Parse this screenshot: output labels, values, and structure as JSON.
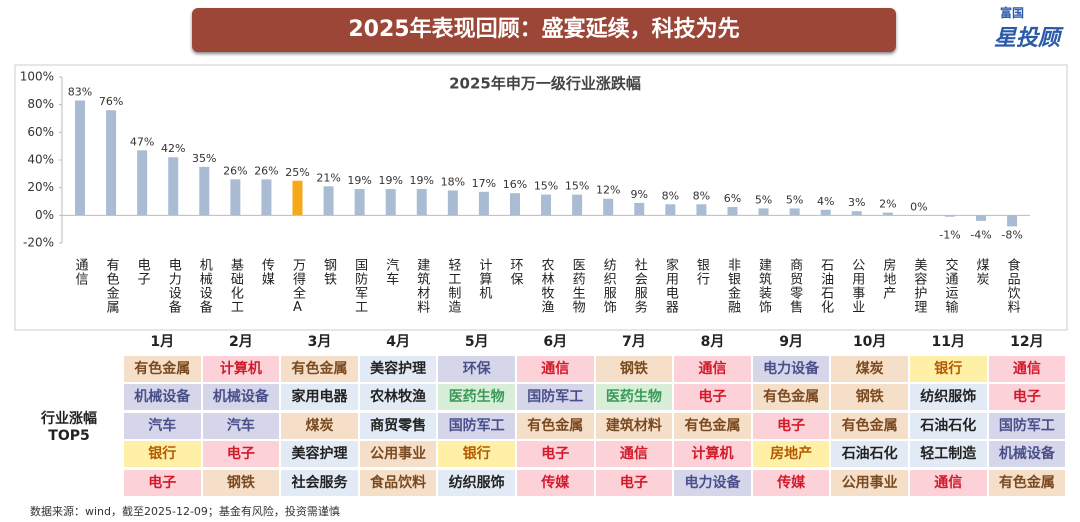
{
  "header": {
    "title": "2025年表现回顾：盛宴延续，科技为先",
    "logo_top": "富国",
    "logo_main": "星投顾"
  },
  "chart_data": {
    "type": "bar",
    "title": "2025年申万一级行业涨跌幅",
    "categories": [
      "通信",
      "有色金属",
      "电子",
      "电力设备",
      "机械设备",
      "基础化工",
      "传媒",
      "万得全A",
      "钢铁",
      "国防军工",
      "汽车",
      "建筑材料",
      "轻工制造",
      "计算机",
      "环保",
      "农林牧渔",
      "医药生物",
      "纺织服饰",
      "社会服务",
      "家用电器",
      "银行",
      "非银金融",
      "建筑装饰",
      "商贸零售",
      "石油石化",
      "公用事业",
      "房地产",
      "美容护理",
      "交通运输",
      "煤炭",
      "食品饮料"
    ],
    "values": [
      83,
      76,
      47,
      42,
      35,
      26,
      26,
      25,
      21,
      19,
      19,
      19,
      18,
      17,
      16,
      15,
      15,
      12,
      9,
      8,
      8,
      6,
      5,
      5,
      4,
      3,
      2,
      0,
      -1,
      -4,
      -8
    ],
    "value_labels": [
      "83%",
      "76%",
      "47%",
      "42%",
      "35%",
      "26%",
      "26%",
      "25%",
      "21%",
      "19%",
      "19%",
      "19%",
      "18%",
      "17%",
      "16%",
      "15%",
      "15%",
      "12%",
      "9%",
      "8%",
      "8%",
      "6%",
      "5%",
      "5%",
      "4%",
      "3%",
      "2%",
      "0%",
      "-1%",
      "-4%",
      "-8%"
    ],
    "colors": [
      "#a9bcd4",
      "#a9bcd4",
      "#a9bcd4",
      "#a9bcd4",
      "#a9bcd4",
      "#a9bcd4",
      "#a9bcd4",
      "#f5a81c",
      "#a9bcd4",
      "#a9bcd4",
      "#a9bcd4",
      "#a9bcd4",
      "#a9bcd4",
      "#a9bcd4",
      "#a9bcd4",
      "#a9bcd4",
      "#a9bcd4",
      "#a9bcd4",
      "#a9bcd4",
      "#a9bcd4",
      "#a9bcd4",
      "#a9bcd4",
      "#a9bcd4",
      "#a9bcd4",
      "#a9bcd4",
      "#a9bcd4",
      "#a9bcd4",
      "#a9bcd4",
      "#a9bcd4",
      "#a9bcd4",
      "#a9bcd4"
    ],
    "ylim": [
      -20,
      100
    ],
    "yticks": [
      {
        "value": -20,
        "label": "-20%"
      },
      {
        "value": 0,
        "label": "0%"
      },
      {
        "value": 20,
        "label": "20%"
      },
      {
        "value": 40,
        "label": "40%"
      },
      {
        "value": 60,
        "label": "60%"
      },
      {
        "value": 80,
        "label": "80%"
      },
      {
        "value": 100,
        "label": "100%"
      }
    ]
  },
  "table": {
    "row_header": "行业涨幅\nTOP5",
    "months": [
      "1月",
      "2月",
      "3月",
      "4月",
      "5月",
      "6月",
      "7月",
      "8月",
      "9月",
      "10月",
      "11月",
      "12月"
    ],
    "rows": [
      [
        {
          "text": "有色金属",
          "tone": "tan"
        },
        {
          "text": "计算机",
          "tone": "pink"
        },
        {
          "text": "有色金属",
          "tone": "tan"
        },
        {
          "text": "美容护理",
          "tone": "blue"
        },
        {
          "text": "环保",
          "tone": "lav"
        },
        {
          "text": "通信",
          "tone": "pink"
        },
        {
          "text": "钢铁",
          "tone": "tan"
        },
        {
          "text": "通信",
          "tone": "pink"
        },
        {
          "text": "电力设备",
          "tone": "lav"
        },
        {
          "text": "煤炭",
          "tone": "tan"
        },
        {
          "text": "银行",
          "tone": "yellow"
        },
        {
          "text": "通信",
          "tone": "pink"
        }
      ],
      [
        {
          "text": "机械设备",
          "tone": "lav"
        },
        {
          "text": "机械设备",
          "tone": "lav"
        },
        {
          "text": "家用电器",
          "tone": "blue"
        },
        {
          "text": "农林牧渔",
          "tone": "blue"
        },
        {
          "text": "医药生物",
          "tone": "green"
        },
        {
          "text": "国防军工",
          "tone": "lav"
        },
        {
          "text": "医药生物",
          "tone": "green"
        },
        {
          "text": "电子",
          "tone": "pink"
        },
        {
          "text": "有色金属",
          "tone": "tan"
        },
        {
          "text": "钢铁",
          "tone": "tan"
        },
        {
          "text": "纺织服饰",
          "tone": "blue"
        },
        {
          "text": "电子",
          "tone": "pink"
        }
      ],
      [
        {
          "text": "汽车",
          "tone": "lav"
        },
        {
          "text": "汽车",
          "tone": "lav"
        },
        {
          "text": "煤炭",
          "tone": "tan"
        },
        {
          "text": "商贸零售",
          "tone": "blue"
        },
        {
          "text": "国防军工",
          "tone": "lav"
        },
        {
          "text": "有色金属",
          "tone": "tan"
        },
        {
          "text": "建筑材料",
          "tone": "tan"
        },
        {
          "text": "有色金属",
          "tone": "tan"
        },
        {
          "text": "电子",
          "tone": "pink"
        },
        {
          "text": "有色金属",
          "tone": "tan"
        },
        {
          "text": "石油石化",
          "tone": "blue"
        },
        {
          "text": "国防军工",
          "tone": "lav"
        }
      ],
      [
        {
          "text": "银行",
          "tone": "yellow"
        },
        {
          "text": "电子",
          "tone": "pink"
        },
        {
          "text": "美容护理",
          "tone": "blue"
        },
        {
          "text": "公用事业",
          "tone": "tan"
        },
        {
          "text": "银行",
          "tone": "yellow"
        },
        {
          "text": "电子",
          "tone": "pink"
        },
        {
          "text": "通信",
          "tone": "pink"
        },
        {
          "text": "计算机",
          "tone": "pink"
        },
        {
          "text": "房地产",
          "tone": "yellow"
        },
        {
          "text": "石油石化",
          "tone": "blue"
        },
        {
          "text": "轻工制造",
          "tone": "blue"
        },
        {
          "text": "机械设备",
          "tone": "lav"
        }
      ],
      [
        {
          "text": "电子",
          "tone": "pink"
        },
        {
          "text": "钢铁",
          "tone": "tan"
        },
        {
          "text": "社会服务",
          "tone": "blue"
        },
        {
          "text": "食品饮料",
          "tone": "tan"
        },
        {
          "text": "纺织服饰",
          "tone": "blue"
        },
        {
          "text": "传媒",
          "tone": "pink"
        },
        {
          "text": "电子",
          "tone": "pink"
        },
        {
          "text": "电力设备",
          "tone": "lav"
        },
        {
          "text": "传媒",
          "tone": "pink"
        },
        {
          "text": "公用事业",
          "tone": "tan"
        },
        {
          "text": "通信",
          "tone": "pink"
        },
        {
          "text": "有色金属",
          "tone": "tan"
        }
      ]
    ]
  },
  "footer": "数据来源：wind，截至2025-12-09；基金有风险，投资需谨慎"
}
